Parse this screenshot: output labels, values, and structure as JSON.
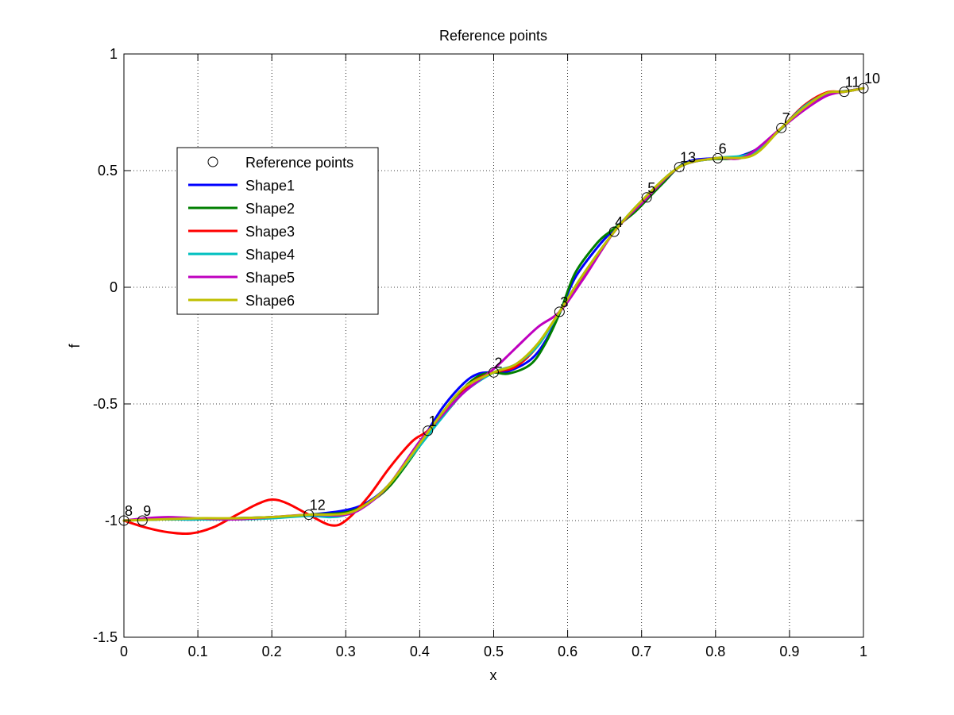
{
  "chart_data": {
    "type": "line",
    "title": "Reference points",
    "xlabel": "x",
    "ylabel": "f",
    "xlim": [
      0,
      1
    ],
    "ylim": [
      -1.5,
      1
    ],
    "xticks": [
      0,
      0.1,
      0.2,
      0.3,
      0.4,
      0.5,
      0.6,
      0.7,
      0.8,
      0.9,
      1
    ],
    "xtick_labels": [
      "0",
      "0.1",
      "0.2",
      "0.3",
      "0.4",
      "0.5",
      "0.6",
      "0.7",
      "0.8",
      "0.9",
      "1"
    ],
    "yticks": [
      -1.5,
      -1,
      -0.5,
      0,
      0.5,
      1
    ],
    "ytick_labels": [
      "-1.5",
      "-1",
      "-0.5",
      "0",
      "0.5",
      "1"
    ],
    "grid": true,
    "legend_position": "upper-left",
    "reference_points": {
      "name": "Reference points",
      "points": [
        {
          "label": "1",
          "x": 0.411,
          "y": -0.615
        },
        {
          "label": "2",
          "x": 0.5,
          "y": -0.365
        },
        {
          "label": "3",
          "x": 0.589,
          "y": -0.105
        },
        {
          "label": "4",
          "x": 0.663,
          "y": 0.238
        },
        {
          "label": "5",
          "x": 0.707,
          "y": 0.385
        },
        {
          "label": "6",
          "x": 0.803,
          "y": 0.553
        },
        {
          "label": "7",
          "x": 0.889,
          "y": 0.683
        },
        {
          "label": "8",
          "x": 0.0,
          "y": -1.0
        },
        {
          "label": "9",
          "x": 0.025,
          "y": -1.0
        },
        {
          "label": "10",
          "x": 1.0,
          "y": 0.853
        },
        {
          "label": "11",
          "x": 0.974,
          "y": 0.838
        },
        {
          "label": "12",
          "x": 0.25,
          "y": -0.975
        },
        {
          "label": "13",
          "x": 0.751,
          "y": 0.515
        }
      ]
    },
    "series": [
      {
        "name": "Shape1",
        "color": "#0000ff",
        "x": [
          0,
          0.05,
          0.1,
          0.15,
          0.2,
          0.25,
          0.3,
          0.33,
          0.36,
          0.4,
          0.43,
          0.46,
          0.48,
          0.5,
          0.52,
          0.55,
          0.57,
          0.59,
          0.61,
          0.64,
          0.66,
          0.69,
          0.71,
          0.73,
          0.75,
          0.77,
          0.8,
          0.83,
          0.86,
          0.89,
          0.92,
          0.95,
          0.975,
          1
        ],
        "y": [
          -1,
          -0.995,
          -0.995,
          -0.99,
          -0.985,
          -0.975,
          -0.955,
          -0.92,
          -0.84,
          -0.67,
          -0.52,
          -0.41,
          -0.37,
          -0.365,
          -0.36,
          -0.31,
          -0.23,
          -0.105,
          0.04,
          0.17,
          0.24,
          0.33,
          0.39,
          0.45,
          0.515,
          0.545,
          0.553,
          0.56,
          0.6,
          0.683,
          0.77,
          0.83,
          0.84,
          0.853
        ]
      },
      {
        "name": "Shape2",
        "color": "#007f00",
        "x": [
          0,
          0.05,
          0.1,
          0.15,
          0.2,
          0.25,
          0.3,
          0.33,
          0.36,
          0.4,
          0.43,
          0.46,
          0.48,
          0.5,
          0.52,
          0.55,
          0.57,
          0.59,
          0.61,
          0.64,
          0.66,
          0.69,
          0.71,
          0.73,
          0.75,
          0.77,
          0.8,
          0.83,
          0.86,
          0.89,
          0.92,
          0.95,
          0.975,
          1
        ],
        "y": [
          -1,
          -0.995,
          -0.995,
          -0.99,
          -0.985,
          -0.975,
          -0.965,
          -0.925,
          -0.85,
          -0.68,
          -0.54,
          -0.43,
          -0.38,
          -0.365,
          -0.37,
          -0.33,
          -0.24,
          -0.105,
          0.06,
          0.19,
          0.245,
          0.32,
          0.385,
          0.45,
          0.515,
          0.54,
          0.55,
          0.555,
          0.6,
          0.683,
          0.77,
          0.83,
          0.84,
          0.853
        ]
      },
      {
        "name": "Shape3",
        "color": "#ff0000",
        "x": [
          0,
          0.03,
          0.06,
          0.09,
          0.12,
          0.15,
          0.18,
          0.2,
          0.22,
          0.25,
          0.28,
          0.3,
          0.33,
          0.36,
          0.39,
          0.411,
          0.44,
          0.47,
          0.5,
          0.53,
          0.56,
          0.589,
          0.62,
          0.663,
          0.707,
          0.751,
          0.8,
          0.85,
          0.889,
          0.92,
          0.95,
          0.974,
          1
        ],
        "y": [
          -1,
          -1.03,
          -1.05,
          -1.055,
          -1.03,
          -0.98,
          -0.93,
          -0.91,
          -0.925,
          -0.975,
          -1.02,
          -1.0,
          -0.9,
          -0.77,
          -0.66,
          -0.615,
          -0.52,
          -0.41,
          -0.365,
          -0.34,
          -0.25,
          -0.105,
          0.04,
          0.238,
          0.385,
          0.515,
          0.553,
          0.57,
          0.683,
          0.78,
          0.835,
          0.838,
          0.853
        ]
      },
      {
        "name": "Shape4",
        "color": "#00bfbf",
        "x": [
          0,
          0.05,
          0.1,
          0.15,
          0.2,
          0.25,
          0.28,
          0.3,
          0.33,
          0.36,
          0.4,
          0.43,
          0.46,
          0.5,
          0.53,
          0.56,
          0.589,
          0.62,
          0.663,
          0.7,
          0.751,
          0.8,
          0.85,
          0.889,
          0.92,
          0.95,
          0.974,
          1
        ],
        "y": [
          -1,
          -0.995,
          -0.995,
          -0.995,
          -0.99,
          -0.98,
          -0.985,
          -0.975,
          -0.93,
          -0.84,
          -0.68,
          -0.56,
          -0.45,
          -0.365,
          -0.33,
          -0.25,
          -0.105,
          0.05,
          0.238,
          0.37,
          0.515,
          0.553,
          0.575,
          0.683,
          0.775,
          0.83,
          0.838,
          0.853
        ]
      },
      {
        "name": "Shape5",
        "color": "#bf00bf",
        "x": [
          0,
          0.03,
          0.06,
          0.1,
          0.15,
          0.2,
          0.25,
          0.3,
          0.33,
          0.36,
          0.4,
          0.43,
          0.46,
          0.5,
          0.53,
          0.56,
          0.589,
          0.62,
          0.663,
          0.7,
          0.751,
          0.8,
          0.84,
          0.889,
          0.92,
          0.95,
          0.974,
          1
        ],
        "y": [
          -1,
          -0.99,
          -0.985,
          -0.99,
          -0.995,
          -0.985,
          -0.975,
          -0.975,
          -0.93,
          -0.84,
          -0.66,
          -0.55,
          -0.45,
          -0.35,
          -0.26,
          -0.17,
          -0.105,
          0.03,
          0.238,
          0.36,
          0.515,
          0.553,
          0.56,
          0.683,
          0.76,
          0.82,
          0.838,
          0.853
        ]
      },
      {
        "name": "Shape6",
        "color": "#bfbf00",
        "x": [
          0,
          0.05,
          0.1,
          0.15,
          0.2,
          0.25,
          0.3,
          0.33,
          0.36,
          0.4,
          0.43,
          0.46,
          0.5,
          0.53,
          0.56,
          0.589,
          0.62,
          0.663,
          0.7,
          0.751,
          0.8,
          0.85,
          0.889,
          0.92,
          0.95,
          0.974,
          1
        ],
        "y": [
          -1,
          -0.995,
          -0.99,
          -0.99,
          -0.985,
          -0.975,
          -0.97,
          -0.925,
          -0.84,
          -0.67,
          -0.54,
          -0.43,
          -0.365,
          -0.33,
          -0.24,
          -0.105,
          0.05,
          0.238,
          0.37,
          0.515,
          0.553,
          0.565,
          0.683,
          0.77,
          0.832,
          0.838,
          0.853
        ]
      }
    ]
  }
}
